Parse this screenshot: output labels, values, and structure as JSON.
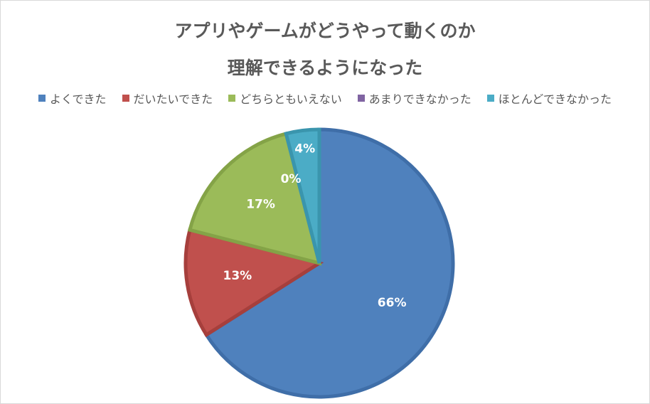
{
  "chart_data": {
    "type": "pie",
    "title_lines": [
      "アプリやゲームがどうやって動くのか",
      "理解できるようになった"
    ],
    "categories": [
      "よくできた",
      "だいたいできた",
      "どちらともいえない",
      "あまりできなかった",
      "ほとんどできなかった"
    ],
    "values": [
      66,
      13,
      17,
      0,
      4
    ],
    "data_labels": [
      "66%",
      "13%",
      "17%",
      "0%",
      "4%"
    ],
    "colors": [
      "#4f81bd",
      "#c0504d",
      "#9bbb59",
      "#8064a2",
      "#4bacc6"
    ],
    "edge_colors": [
      "#3f6ea8",
      "#a63f3c",
      "#84a347",
      "#6b5189",
      "#3a95ad"
    ],
    "legend_position": "top"
  }
}
